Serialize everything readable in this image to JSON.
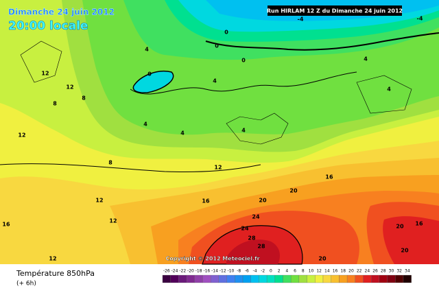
{
  "header": {
    "date": "Dimanche 24 juin 2012",
    "time": "20:00 locale",
    "run": "Run HIRLAM 12 Z du Dimanche 24 juin 2012"
  },
  "copyright": "Copyright © 2012 Meteociel.fr",
  "legend": {
    "title": "Température 850hPa",
    "subtitle": "(+ 6h)"
  },
  "scale": {
    "ticks": [
      -26,
      -24,
      -22,
      -20,
      -18,
      -16,
      -14,
      -12,
      -10,
      -8,
      -6,
      -4,
      -2,
      0,
      2,
      4,
      6,
      8,
      10,
      12,
      14,
      16,
      18,
      20,
      22,
      24,
      26,
      28,
      30,
      32,
      34
    ],
    "colors": [
      "#3a0040",
      "#52005a",
      "#6a1a7a",
      "#7f2a90",
      "#9040a8",
      "#a050c0",
      "#8060d0",
      "#6070e0",
      "#4080f0",
      "#2090f0",
      "#00a0f0",
      "#00c0f0",
      "#00d8e0",
      "#00e0c0",
      "#00e090",
      "#40e060",
      "#70e040",
      "#a0e040",
      "#c8f040",
      "#f0f040",
      "#f8d840",
      "#f8c030",
      "#f8a020",
      "#f88020",
      "#f05020",
      "#e02020",
      "#c01020",
      "#a00010",
      "#800010",
      "#500000",
      "#200000"
    ]
  },
  "contour_labels": [
    0,
    0,
    0,
    0,
    -4,
    -4,
    4,
    4,
    4,
    4,
    4,
    4,
    4,
    12,
    12,
    8,
    8,
    12,
    12,
    12,
    12,
    16,
    16,
    16,
    20,
    20,
    20,
    24,
    24,
    28,
    28,
    20,
    16,
    20,
    12,
    8
  ]
}
